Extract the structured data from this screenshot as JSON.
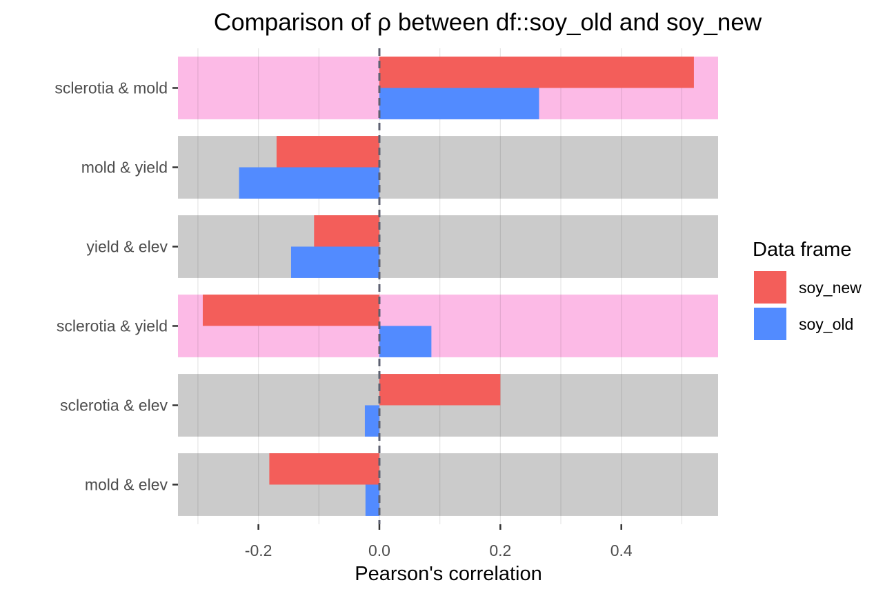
{
  "chart_data": {
    "type": "bar",
    "orientation": "horizontal",
    "title": "Comparison of ρ between df::soy_old and soy_new",
    "xlabel": "Pearson's correlation",
    "ylabel": "",
    "xlim": [
      -0.333,
      0.56
    ],
    "x_ticks": [
      -0.2,
      0.0,
      0.2,
      0.4
    ],
    "x_tick_labels": [
      "-0.2",
      "0.0",
      "0.2",
      "0.4"
    ],
    "categories": [
      "sclerotia & mold",
      "mold & yield",
      "yield & elev",
      "sclerotia & yield",
      "sclerotia & elev",
      "mold & elev"
    ],
    "series": [
      {
        "name": "soy_new",
        "color": "#F35E5A",
        "values": [
          0.52,
          -0.17,
          -0.108,
          -0.292,
          0.2,
          -0.182
        ]
      },
      {
        "name": "soy_old",
        "color": "#528BFF",
        "values": [
          0.264,
          -0.232,
          -0.146,
          0.086,
          -0.024,
          -0.023
        ]
      }
    ],
    "row_highlight": [
      true,
      false,
      false,
      true,
      false,
      false
    ],
    "row_colors": {
      "highlight": "#FCBAE6",
      "normal": "#CBCBCB"
    },
    "reference_line": {
      "x": 0,
      "style": "dashed",
      "color": "#5C6070"
    },
    "grid": true,
    "legend": {
      "title": "Data frame",
      "position": "right"
    }
  }
}
